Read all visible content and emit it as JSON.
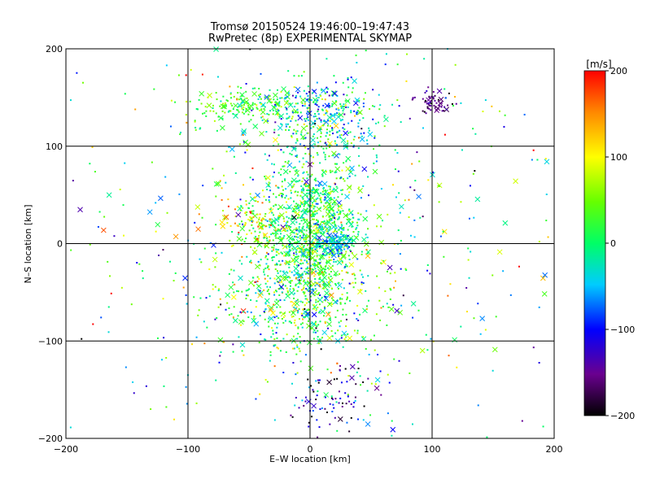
{
  "chart_data": {
    "type": "scatter",
    "title": "Tromsø 20150524 19:46:00–19:47:43",
    "subtitle": "RwPretec (8p) EXPERIMENTAL SKYMAP",
    "xlabel": "E–W location [km]",
    "ylabel": "N–S location [km]",
    "xlim": [
      -200,
      200
    ],
    "ylim": [
      -200,
      200
    ],
    "xticks": [
      -200,
      -100,
      0,
      100,
      200
    ],
    "yticks": [
      -200,
      -100,
      0,
      100,
      200
    ],
    "grid": true,
    "colorbar": {
      "label": "[m/s]",
      "range": [
        -200,
        200
      ],
      "ticks": [
        200,
        100,
        0,
        -100,
        -200
      ],
      "colormap": "rainbow"
    },
    "markers": [
      "dot",
      "x"
    ],
    "clusters": [
      {
        "x": 0,
        "y": 15,
        "sx": 22,
        "sy": 40,
        "n": 1100,
        "vmean": 10,
        "vsd": 45
      },
      {
        "x": -55,
        "y": 140,
        "sx": 22,
        "sy": 8,
        "n": 160,
        "vmean": 35,
        "vsd": 30
      },
      {
        "x": 10,
        "y": 130,
        "sx": 25,
        "sy": 20,
        "n": 350,
        "vmean": -20,
        "vsd": 60
      },
      {
        "x": 100,
        "y": 145,
        "sx": 8,
        "sy": 6,
        "n": 60,
        "vmean": -170,
        "vsd": 20
      },
      {
        "x": 20,
        "y": -160,
        "sx": 15,
        "sy": 18,
        "n": 90,
        "vmean": -130,
        "vsd": 60
      },
      {
        "x": -10,
        "y": -60,
        "sx": 30,
        "sy": 30,
        "n": 400,
        "vmean": 30,
        "vsd": 60
      },
      {
        "x": -45,
        "y": 20,
        "sx": 15,
        "sy": 15,
        "n": 120,
        "vmean": 80,
        "vsd": 50
      },
      {
        "x": 20,
        "y": 0,
        "sx": 8,
        "sy": 6,
        "n": 80,
        "vmean": -60,
        "vsd": 25
      },
      {
        "x": 0,
        "y": 0,
        "sx": 110,
        "sy": 110,
        "n": 600,
        "vmean": 0,
        "vsd": 90
      }
    ]
  }
}
